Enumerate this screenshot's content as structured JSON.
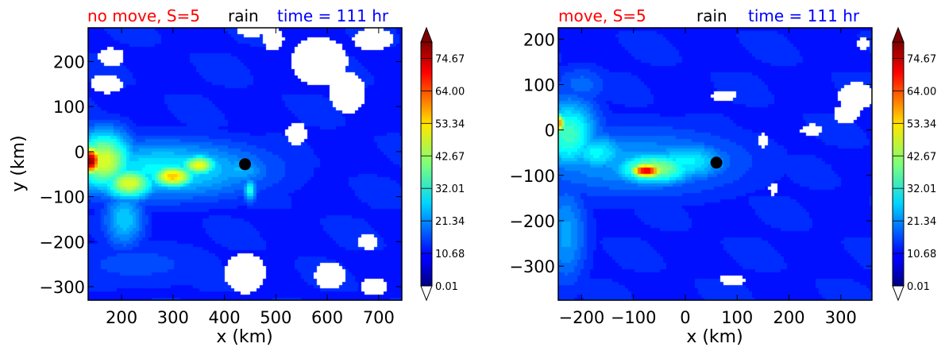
{
  "chart_data": [
    {
      "type": "heatmap",
      "title_segments": [
        {
          "text": "no move, S=5",
          "color": "#ff0000"
        },
        {
          "text": "rain",
          "color": "#000000"
        },
        {
          "text": "time = 111 hr",
          "color": "#0000ff"
        }
      ],
      "xlabel": "x (km)",
      "ylabel": "y (km)",
      "xlim": [
        135,
        745
      ],
      "ylim": [
        -330,
        275
      ],
      "xticks": [
        200,
        300,
        400,
        500,
        600,
        700
      ],
      "yticks": [
        200,
        100,
        0,
        -100,
        -200,
        -300
      ],
      "ytick_labels": [
        "200",
        "100",
        "0",
        "−100",
        "−200",
        "−300"
      ],
      "center_marker": {
        "x": 440,
        "y": -28,
        "color": "#000000"
      },
      "colorbar": {
        "min": 0.01,
        "max": 80,
        "ticks": [
          0.01,
          10.68,
          21.34,
          32.01,
          42.67,
          53.34,
          64.0,
          74.67
        ],
        "tick_labels": [
          "0.01",
          "10.68",
          "21.34",
          "32.01",
          "42.67",
          "53.34",
          "64.00",
          "74.67"
        ],
        "extend": "both",
        "colormap": "jet"
      },
      "field": {
        "background_value": 5,
        "blobs": [
          {
            "x": 140,
            "y": -20,
            "sx": 14,
            "sy": 22,
            "v": 78
          },
          {
            "x": 165,
            "y": -20,
            "sx": 40,
            "sy": 45,
            "v": 42
          },
          {
            "x": 215,
            "y": -70,
            "sx": 35,
            "sy": 25,
            "v": 42
          },
          {
            "x": 300,
            "y": -55,
            "sx": 30,
            "sy": 18,
            "v": 50
          },
          {
            "x": 350,
            "y": -30,
            "sx": 25,
            "sy": 16,
            "v": 44
          },
          {
            "x": 280,
            "y": -40,
            "sx": 140,
            "sy": 45,
            "v": 22
          },
          {
            "x": 205,
            "y": -150,
            "sx": 28,
            "sy": 45,
            "v": 18
          },
          {
            "x": 430,
            "y": -40,
            "sx": 40,
            "sy": 25,
            "v": 16
          },
          {
            "x": 450,
            "y": -85,
            "sx": 8,
            "sy": 18,
            "v": 26
          },
          {
            "x": 230,
            "y": -250,
            "sx": 120,
            "sy": 40,
            "v": 6
          }
        ],
        "white_regions": [
          {
            "x": 585,
            "y": 200,
            "rx": 55,
            "ry": 55
          },
          {
            "x": 640,
            "y": 130,
            "rx": 35,
            "ry": 45
          },
          {
            "x": 690,
            "y": 250,
            "rx": 40,
            "ry": 25
          },
          {
            "x": 170,
            "y": 150,
            "rx": 32,
            "ry": 20
          },
          {
            "x": 180,
            "y": 210,
            "rx": 25,
            "ry": 20
          },
          {
            "x": 540,
            "y": 40,
            "rx": 20,
            "ry": 25
          },
          {
            "x": 495,
            "y": 250,
            "rx": 20,
            "ry": 25
          },
          {
            "x": 605,
            "y": -275,
            "rx": 30,
            "ry": 30
          },
          {
            "x": 690,
            "y": -300,
            "rx": 25,
            "ry": 20
          },
          {
            "x": 440,
            "y": -270,
            "rx": 40,
            "ry": 45
          },
          {
            "x": 680,
            "y": -200,
            "rx": 20,
            "ry": 18
          },
          {
            "x": 455,
            "y": 270,
            "rx": 30,
            "ry": 15
          }
        ]
      }
    },
    {
      "type": "heatmap",
      "title_segments": [
        {
          "text": "move, S=5",
          "color": "#ff0000"
        },
        {
          "text": "rain",
          "color": "#000000"
        },
        {
          "text": "time = 111 hr",
          "color": "#0000ff"
        }
      ],
      "xlabel": "x (km)",
      "ylabel": "",
      "xlim": [
        -245,
        360
      ],
      "ylim": [
        -375,
        225
      ],
      "xticks": [
        -200,
        -100,
        0,
        100,
        200,
        300
      ],
      "xtick_labels": [
        "−200",
        "−100",
        "0",
        "100",
        "200",
        "300"
      ],
      "yticks": [
        200,
        100,
        0,
        -100,
        -200,
        -300
      ],
      "ytick_labels": [
        "200",
        "100",
        "0",
        "−100",
        "−200",
        "−300"
      ],
      "center_marker": {
        "x": 60,
        "y": -72,
        "color": "#000000"
      },
      "colorbar": {
        "min": 0.01,
        "max": 80,
        "ticks": [
          0.01,
          10.68,
          21.34,
          32.01,
          42.67,
          53.34,
          64.0,
          74.67
        ],
        "tick_labels": [
          "0.01",
          "10.68",
          "21.34",
          "32.01",
          "42.67",
          "53.34",
          "64.00",
          "74.67"
        ],
        "extend": "both",
        "colormap": "jet"
      },
      "field": {
        "background_value": 5,
        "blobs": [
          {
            "x": -245,
            "y": 15,
            "sx": 10,
            "sy": 16,
            "v": 55
          },
          {
            "x": -225,
            "y": -10,
            "sx": 40,
            "sy": 55,
            "v": 28
          },
          {
            "x": -170,
            "y": -50,
            "sx": 45,
            "sy": 30,
            "v": 22
          },
          {
            "x": -75,
            "y": -90,
            "sx": 22,
            "sy": 11,
            "v": 72
          },
          {
            "x": -60,
            "y": -85,
            "sx": 55,
            "sy": 25,
            "v": 36
          },
          {
            "x": 0,
            "y": -70,
            "sx": 60,
            "sy": 30,
            "v": 22
          },
          {
            "x": -100,
            "y": -70,
            "sx": 160,
            "sy": 55,
            "v": 14
          },
          {
            "x": -230,
            "y": -230,
            "sx": 30,
            "sy": 80,
            "v": 14
          },
          {
            "x": -200,
            "y": 100,
            "sx": 40,
            "sy": 30,
            "v": 9
          }
        ],
        "white_regions": [
          {
            "x": 75,
            "y": 75,
            "rx": 25,
            "ry": 12
          },
          {
            "x": 330,
            "y": 75,
            "rx": 35,
            "ry": 30
          },
          {
            "x": 310,
            "y": 35,
            "rx": 25,
            "ry": 20
          },
          {
            "x": 245,
            "y": 0,
            "rx": 22,
            "ry": 12
          },
          {
            "x": 345,
            "y": 190,
            "rx": 12,
            "ry": 12
          },
          {
            "x": 150,
            "y": -25,
            "rx": 8,
            "ry": 18
          },
          {
            "x": 170,
            "y": -130,
            "rx": 8,
            "ry": 15
          },
          {
            "x": 90,
            "y": -330,
            "rx": 25,
            "ry": 12
          }
        ]
      }
    }
  ]
}
